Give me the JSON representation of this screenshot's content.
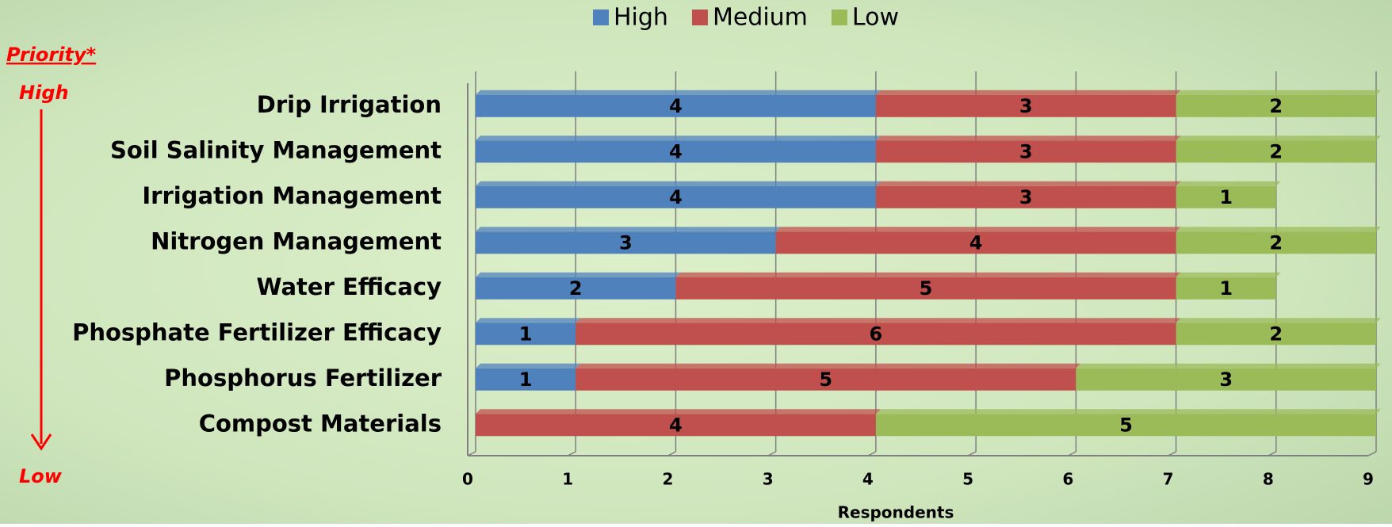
{
  "chart_data": {
    "type": "stacked_bar_horizontal",
    "categories": [
      "Drip Irrigation",
      "Soil Salinity Management",
      "Irrigation Management",
      "Nitrogen Management",
      "Water Efficacy",
      "Phosphate Fertilizer Efficacy",
      "Phosphorus Fertilizer",
      "Compost Materials"
    ],
    "series": [
      {
        "name": "High",
        "color": "#4f81bd",
        "values": [
          4,
          4,
          4,
          3,
          2,
          1,
          1,
          null
        ]
      },
      {
        "name": "Medium",
        "color": "#c0504d",
        "values": [
          3,
          3,
          3,
          4,
          5,
          6,
          5,
          4
        ]
      },
      {
        "name": "Low",
        "color": "#9bbb59",
        "values": [
          2,
          2,
          1,
          2,
          1,
          2,
          3,
          5
        ]
      }
    ],
    "x_label": "Respondents",
    "xlim": [
      0,
      9
    ],
    "xticks": [
      0,
      1,
      2,
      3,
      4,
      5,
      6,
      7,
      8,
      9
    ],
    "grid": true,
    "legend": "top",
    "priority_label": "Priority*",
    "priority_high": "High",
    "priority_low": "Low"
  }
}
